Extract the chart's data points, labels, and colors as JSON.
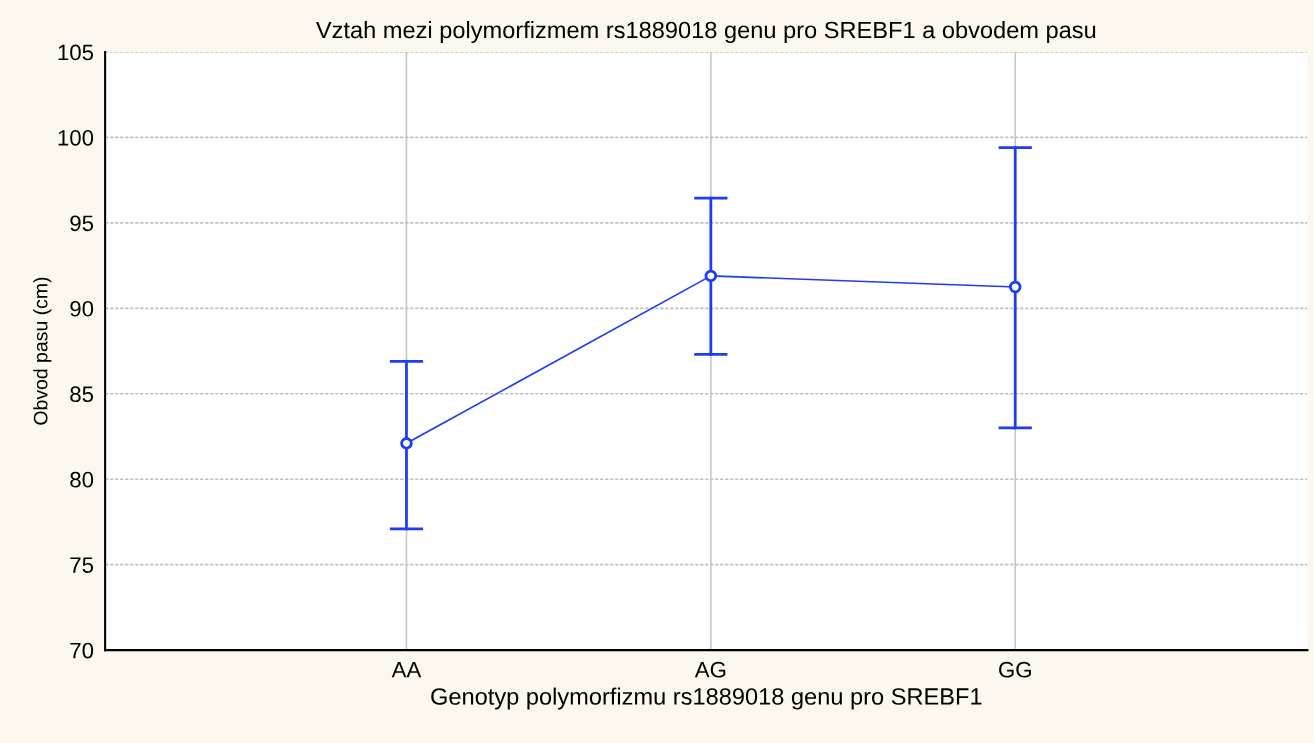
{
  "chart_data": {
    "type": "line",
    "title": "Vztah mezi polymorfizmem rs1889018 genu pro SREBF1 a obvodem pasu",
    "xlabel": "Genotyp polymorfizmu rs1889018 genu pro SREBF1",
    "ylabel": "Obvod pasu (cm)",
    "categories": [
      "AA",
      "AG",
      "GG"
    ],
    "series": [
      {
        "color": "#1f3cf5",
        "values": [
          82.1,
          91.9,
          91.25
        ],
        "errors": [
          [
            77.1,
            86.9
          ],
          [
            87.3,
            96.45
          ],
          [
            83.0,
            99.4
          ]
        ]
      }
    ],
    "ylim": [
      70,
      105
    ],
    "yticks": [
      70,
      75,
      80,
      85,
      90,
      95,
      100,
      105
    ],
    "grid": true,
    "marker": "circle",
    "line_style": "solid"
  }
}
